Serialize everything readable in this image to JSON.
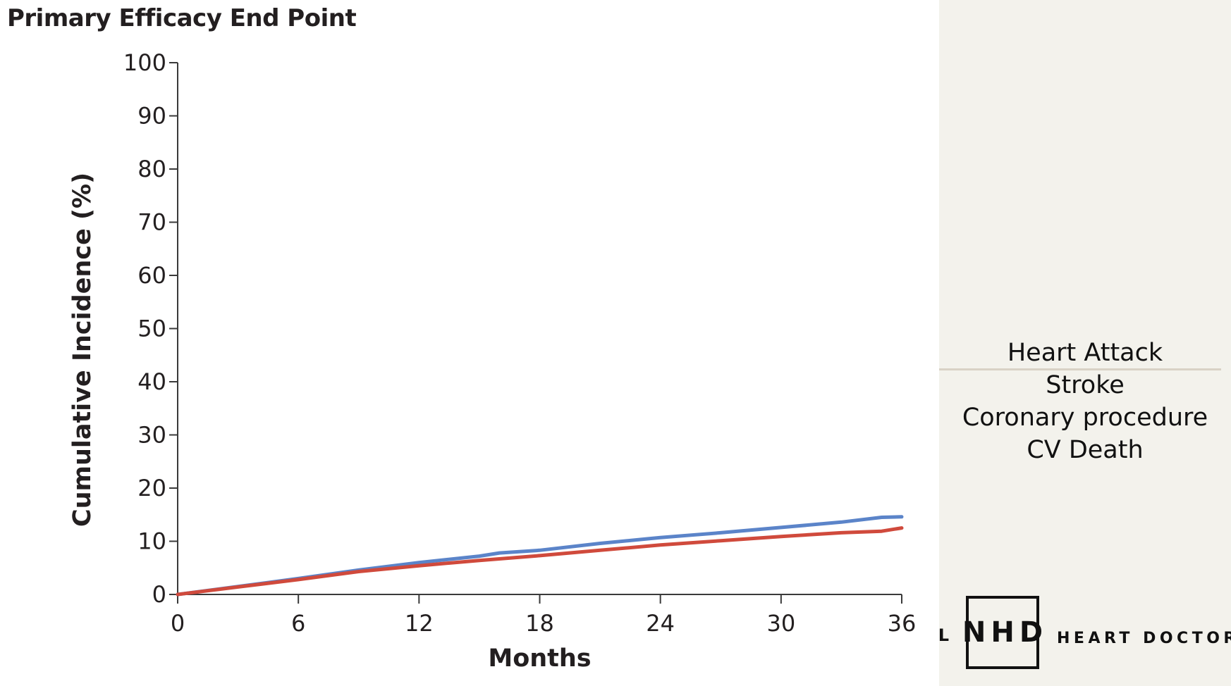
{
  "chart_data": {
    "type": "line",
    "title": "Primary Efficacy End Point",
    "xlabel": "Months",
    "ylabel": "Cumulative Incidence (%)",
    "xlim": [
      0,
      36
    ],
    "ylim": [
      0,
      100
    ],
    "xticks": [
      0,
      6,
      12,
      18,
      24,
      30,
      36
    ],
    "yticks": [
      0,
      10,
      20,
      30,
      40,
      50,
      60,
      70,
      80,
      90,
      100
    ],
    "grid": false,
    "series": [
      {
        "color": "#5b84c9",
        "points": [
          [
            0,
            0
          ],
          [
            3,
            1.5
          ],
          [
            6,
            3
          ],
          [
            9,
            4.6
          ],
          [
            12,
            6
          ],
          [
            15,
            7.2
          ],
          [
            16,
            7.8
          ],
          [
            18,
            8.3
          ],
          [
            21,
            9.6
          ],
          [
            24,
            10.7
          ],
          [
            27,
            11.6
          ],
          [
            30,
            12.6
          ],
          [
            33,
            13.6
          ],
          [
            35,
            14.5
          ],
          [
            36,
            14.6
          ]
        ]
      },
      {
        "color": "#d04a3c",
        "points": [
          [
            0,
            0
          ],
          [
            3,
            1.4
          ],
          [
            6,
            2.8
          ],
          [
            9,
            4.3
          ],
          [
            12,
            5.4
          ],
          [
            15,
            6.4
          ],
          [
            18,
            7.3
          ],
          [
            21,
            8.3
          ],
          [
            24,
            9.3
          ],
          [
            27,
            10.1
          ],
          [
            30,
            10.9
          ],
          [
            33,
            11.6
          ],
          [
            35,
            11.9
          ],
          [
            36,
            12.5
          ]
        ]
      }
    ]
  },
  "side": {
    "endpoints": [
      "Heart Attack",
      "Stroke",
      "Coronary procedure",
      "CV Death"
    ],
    "logo": {
      "fragment": "AL",
      "initials": "NHD",
      "text": "HEART DOCTOR"
    }
  }
}
